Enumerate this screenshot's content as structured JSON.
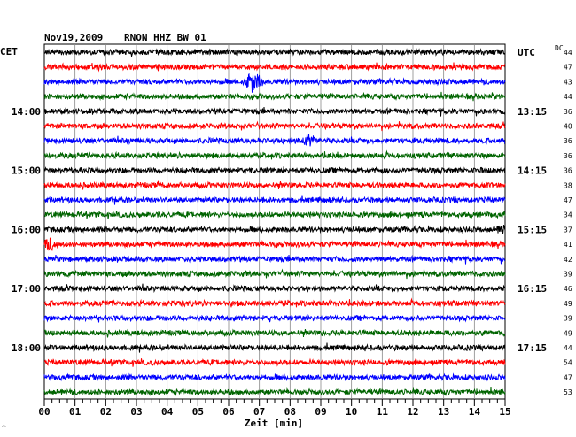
{
  "header": {
    "date": "Nov19,2009",
    "station": "RNON HHZ BW 01"
  },
  "left_label": "CET",
  "right_label": "UTC",
  "dc_label": "DC",
  "x_axis_label": "Zeit [min]",
  "corner_mark": "^",
  "chart_data": {
    "type": "line",
    "title": "Nov19,2009   RNON HHZ BW 01",
    "xlabel": "Zeit [min]",
    "xlim": [
      0,
      15
    ],
    "x_ticks": [
      "00",
      "01",
      "02",
      "03",
      "04",
      "05",
      "06",
      "07",
      "08",
      "09",
      "10",
      "11",
      "12",
      "13",
      "14",
      "15"
    ],
    "grid": true,
    "trace_count": 24,
    "trace_colors": [
      "#000000",
      "#ff0000",
      "#0000ff",
      "#006400"
    ],
    "left_hour_labels": [
      {
        "trace": 4,
        "label": "14:00"
      },
      {
        "trace": 8,
        "label": "15:00"
      },
      {
        "trace": 12,
        "label": "16:00"
      },
      {
        "trace": 16,
        "label": "17:00"
      },
      {
        "trace": 20,
        "label": "18:00"
      }
    ],
    "right_hour_labels": [
      {
        "trace": 0,
        "label": "UTC"
      },
      {
        "trace": 4,
        "label": "13:15"
      },
      {
        "trace": 8,
        "label": "14:15"
      },
      {
        "trace": 12,
        "label": "15:15"
      },
      {
        "trace": 16,
        "label": "16:15"
      },
      {
        "trace": 20,
        "label": "17:15"
      }
    ],
    "dc_values": [
      44,
      47,
      43,
      44,
      36,
      40,
      36,
      36,
      36,
      38,
      47,
      34,
      37,
      41,
      42,
      39,
      46,
      49,
      39,
      49,
      44,
      54,
      47,
      53
    ],
    "events": [
      {
        "trace": 2,
        "minute": 6.8,
        "amplitude": 3.2
      },
      {
        "trace": 6,
        "minute": 8.6,
        "amplitude": 1.6
      },
      {
        "trace": 13,
        "minute": 0.2,
        "amplitude": 1.5
      },
      {
        "trace": 12,
        "minute": 15.0,
        "amplitude": 1.2
      }
    ]
  }
}
